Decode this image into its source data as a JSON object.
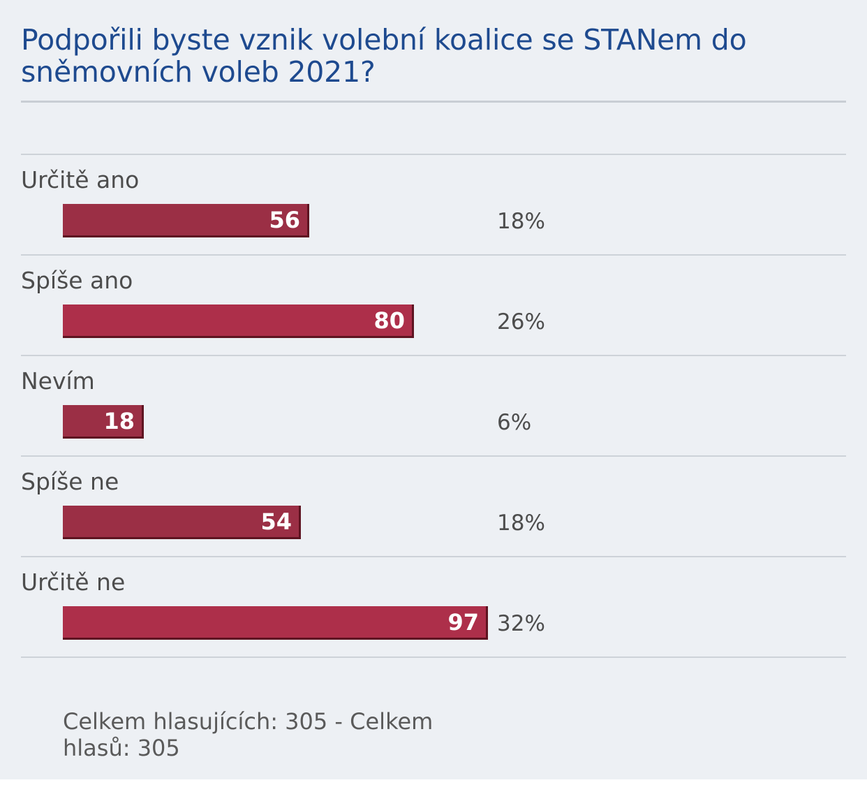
{
  "poll": {
    "title": "Podpořili byste vznik volební koalice se STANem do sněmovních voleb 2021?",
    "footer_text": "Celkem hlasujících: 305 - Celkem hlasů: 305"
  },
  "colors": {
    "background": "#edf0f4",
    "title": "#1e4a8f",
    "bar_dark": "#9b2f45",
    "bar_light": "#ad2f4a",
    "bar_border": "#5e1421",
    "divider": "#cdd2d8",
    "label_text": "#4d4d4d"
  },
  "chart_data": {
    "type": "bar",
    "orientation": "horizontal",
    "title": "Podpořili byste vznik volební koalice se STANem do sněmovních voleb 2021?",
    "categories": [
      "Určitě ano",
      "Spíše ano",
      "Nevím",
      "Spíše ne",
      "Určitě ne"
    ],
    "values": [
      56,
      80,
      18,
      54,
      97
    ],
    "percent_labels": [
      "18%",
      "26%",
      "6%",
      "18%",
      "32%"
    ],
    "value_labels": [
      "56",
      "80",
      "18",
      "54",
      "97"
    ],
    "bar_colors": [
      "#9b2f45",
      "#ad2f4a",
      "#9b2f45",
      "#9b2f45",
      "#ad2f4a"
    ],
    "xlim": [
      0,
      100
    ],
    "grid": false,
    "legend": "none"
  }
}
